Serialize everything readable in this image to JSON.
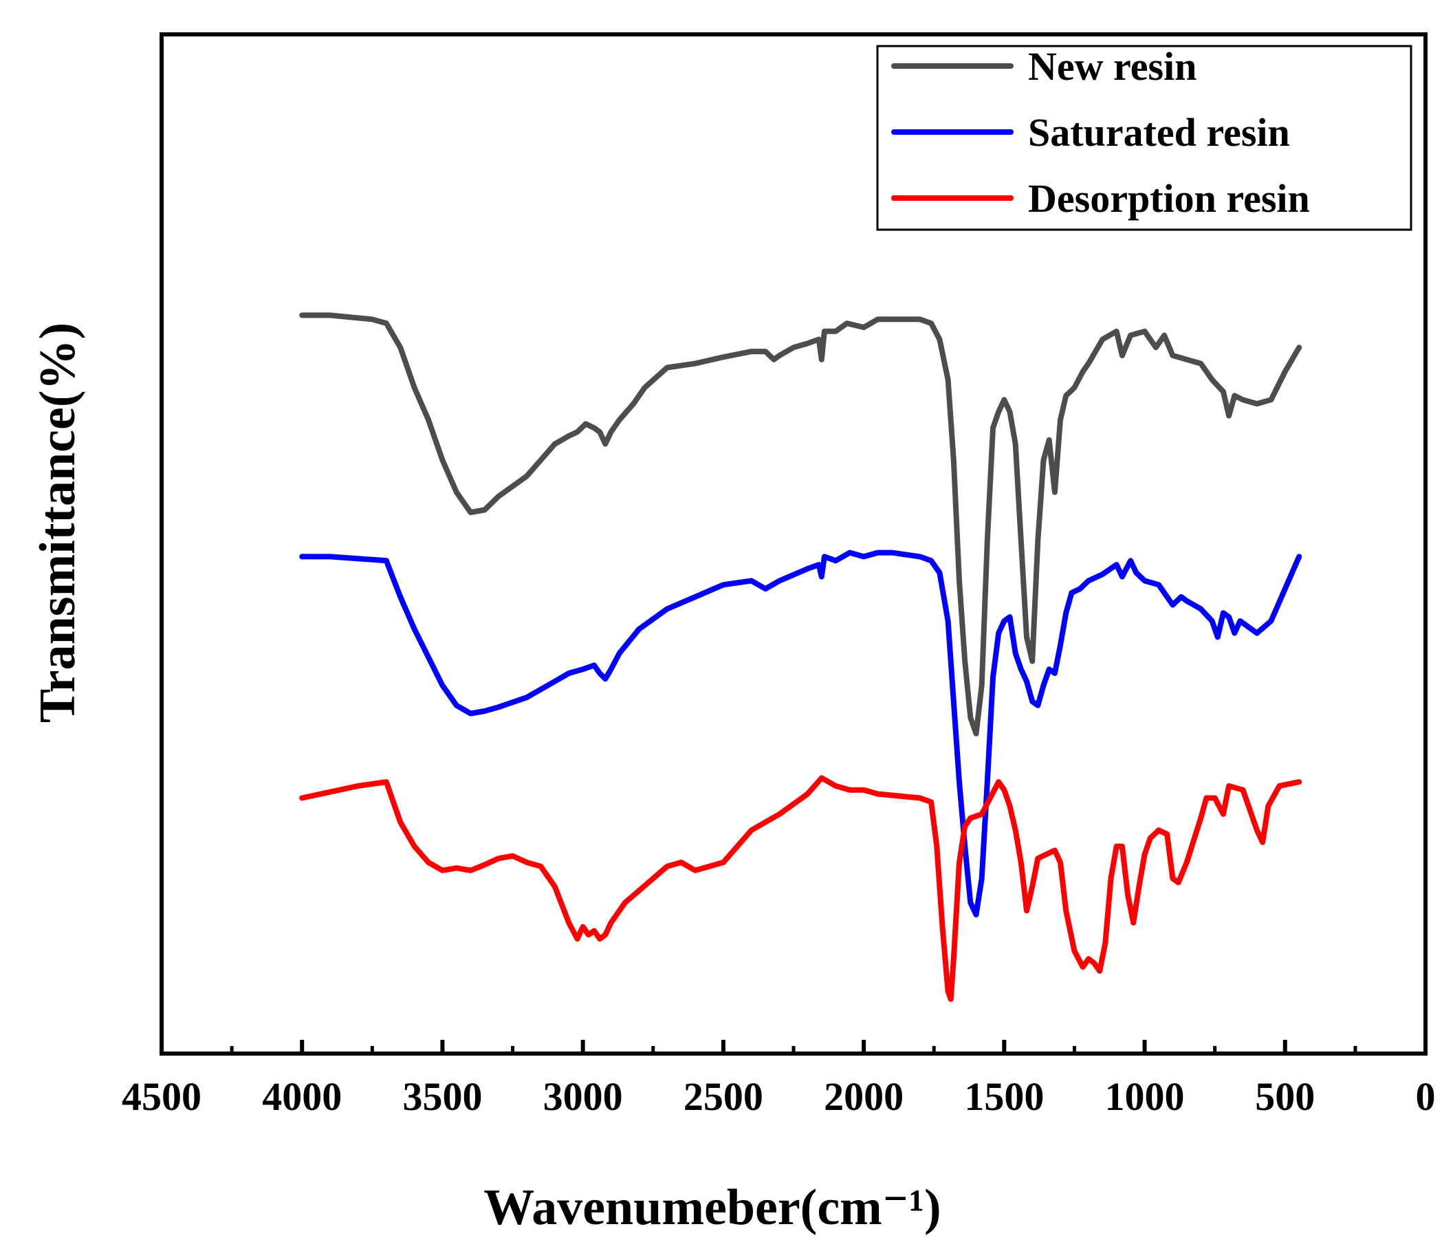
{
  "chart_data": {
    "type": "line",
    "title": "",
    "xlabel": "Wavenumeber(cm⁻¹)",
    "ylabel": "Transmittance(%)",
    "xlim": [
      4500,
      0
    ],
    "x_reversed": true,
    "y_ticks_shown": false,
    "grid": false,
    "legend_position": "top-right",
    "x_tick_labels": [
      "4500",
      "4000",
      "3500",
      "3000",
      "2500",
      "2000",
      "1500",
      "1000",
      "500",
      "0"
    ],
    "series": [
      {
        "name": "New resin",
        "color": "#4d4d4d",
        "points": [
          [
            4000,
            88
          ],
          [
            3900,
            88
          ],
          [
            3750,
            87.5
          ],
          [
            3700,
            87
          ],
          [
            3650,
            84
          ],
          [
            3600,
            79
          ],
          [
            3550,
            75
          ],
          [
            3500,
            70
          ],
          [
            3450,
            66
          ],
          [
            3400,
            63.5
          ],
          [
            3350,
            63.8
          ],
          [
            3300,
            65.5
          ],
          [
            3200,
            68
          ],
          [
            3100,
            72
          ],
          [
            3050,
            73
          ],
          [
            3020,
            73.5
          ],
          [
            2990,
            74.5
          ],
          [
            2960,
            74
          ],
          [
            2940,
            73.5
          ],
          [
            2920,
            72
          ],
          [
            2900,
            73.5
          ],
          [
            2870,
            75
          ],
          [
            2820,
            77
          ],
          [
            2780,
            79
          ],
          [
            2700,
            81.5
          ],
          [
            2600,
            82
          ],
          [
            2500,
            82.8
          ],
          [
            2400,
            83.5
          ],
          [
            2350,
            83.5
          ],
          [
            2320,
            82.5
          ],
          [
            2300,
            83
          ],
          [
            2250,
            84
          ],
          [
            2200,
            84.5
          ],
          [
            2160,
            85
          ],
          [
            2150,
            82.5
          ],
          [
            2140,
            86
          ],
          [
            2100,
            86
          ],
          [
            2060,
            87
          ],
          [
            2000,
            86.5
          ],
          [
            1950,
            87.5
          ],
          [
            1900,
            87.5
          ],
          [
            1800,
            87.5
          ],
          [
            1760,
            87
          ],
          [
            1730,
            85
          ],
          [
            1700,
            80
          ],
          [
            1680,
            70
          ],
          [
            1660,
            55
          ],
          [
            1640,
            45
          ],
          [
            1620,
            38
          ],
          [
            1600,
            36
          ],
          [
            1580,
            42
          ],
          [
            1560,
            60
          ],
          [
            1540,
            74
          ],
          [
            1520,
            76
          ],
          [
            1500,
            77.5
          ],
          [
            1480,
            76
          ],
          [
            1460,
            72
          ],
          [
            1440,
            60
          ],
          [
            1420,
            48
          ],
          [
            1400,
            45
          ],
          [
            1380,
            60
          ],
          [
            1360,
            70
          ],
          [
            1340,
            72.5
          ],
          [
            1320,
            66
          ],
          [
            1300,
            75
          ],
          [
            1280,
            78
          ],
          [
            1250,
            79
          ],
          [
            1220,
            81
          ],
          [
            1200,
            82
          ],
          [
            1150,
            85
          ],
          [
            1100,
            86
          ],
          [
            1080,
            83
          ],
          [
            1050,
            85.5
          ],
          [
            1000,
            86
          ],
          [
            960,
            84
          ],
          [
            930,
            85.5
          ],
          [
            900,
            83
          ],
          [
            850,
            82.5
          ],
          [
            800,
            82
          ],
          [
            760,
            80
          ],
          [
            720,
            78.5
          ],
          [
            700,
            75.5
          ],
          [
            680,
            78
          ],
          [
            650,
            77.5
          ],
          [
            600,
            77
          ],
          [
            550,
            77.5
          ],
          [
            500,
            81
          ],
          [
            450,
            84
          ]
        ]
      },
      {
        "name": "Saturated resin",
        "color": "#0000ff",
        "points": [
          [
            4000,
            58
          ],
          [
            3900,
            58
          ],
          [
            3700,
            57.5
          ],
          [
            3650,
            53
          ],
          [
            3600,
            49
          ],
          [
            3550,
            45.5
          ],
          [
            3500,
            42
          ],
          [
            3450,
            39.5
          ],
          [
            3400,
            38.5
          ],
          [
            3350,
            38.8
          ],
          [
            3300,
            39.3
          ],
          [
            3200,
            40.5
          ],
          [
            3100,
            42.5
          ],
          [
            3050,
            43.5
          ],
          [
            3000,
            44
          ],
          [
            2960,
            44.5
          ],
          [
            2940,
            43.5
          ],
          [
            2920,
            42.8
          ],
          [
            2900,
            44
          ],
          [
            2870,
            46
          ],
          [
            2800,
            49
          ],
          [
            2700,
            51.5
          ],
          [
            2600,
            53
          ],
          [
            2500,
            54.5
          ],
          [
            2400,
            55
          ],
          [
            2350,
            54
          ],
          [
            2300,
            55
          ],
          [
            2200,
            56.5
          ],
          [
            2160,
            57
          ],
          [
            2150,
            55.5
          ],
          [
            2140,
            58
          ],
          [
            2100,
            57.5
          ],
          [
            2050,
            58.5
          ],
          [
            2000,
            58
          ],
          [
            1950,
            58.5
          ],
          [
            1900,
            58.5
          ],
          [
            1800,
            58
          ],
          [
            1760,
            57.5
          ],
          [
            1730,
            56
          ],
          [
            1700,
            50
          ],
          [
            1680,
            40
          ],
          [
            1660,
            30
          ],
          [
            1640,
            22
          ],
          [
            1620,
            15
          ],
          [
            1600,
            13.5
          ],
          [
            1580,
            18
          ],
          [
            1560,
            30
          ],
          [
            1540,
            43
          ],
          [
            1520,
            48.5
          ],
          [
            1500,
            50
          ],
          [
            1480,
            50.5
          ],
          [
            1460,
            46
          ],
          [
            1440,
            44
          ],
          [
            1420,
            42.5
          ],
          [
            1400,
            40
          ],
          [
            1380,
            39.5
          ],
          [
            1360,
            42
          ],
          [
            1340,
            44
          ],
          [
            1320,
            43.5
          ],
          [
            1300,
            47
          ],
          [
            1280,
            51
          ],
          [
            1260,
            53.5
          ],
          [
            1230,
            54
          ],
          [
            1200,
            55
          ],
          [
            1150,
            55.8
          ],
          [
            1100,
            57
          ],
          [
            1080,
            55.5
          ],
          [
            1050,
            57.5
          ],
          [
            1030,
            56
          ],
          [
            1000,
            55
          ],
          [
            950,
            54.5
          ],
          [
            900,
            52
          ],
          [
            870,
            53
          ],
          [
            850,
            52.5
          ],
          [
            800,
            51.5
          ],
          [
            760,
            50
          ],
          [
            740,
            48
          ],
          [
            720,
            51
          ],
          [
            700,
            50.5
          ],
          [
            680,
            48.5
          ],
          [
            660,
            50
          ],
          [
            640,
            49.5
          ],
          [
            600,
            48.5
          ],
          [
            550,
            50
          ],
          [
            500,
            54
          ],
          [
            450,
            58
          ]
        ]
      },
      {
        "name": "Desorption resin",
        "color": "#ff0000",
        "points": [
          [
            4000,
            28
          ],
          [
            3800,
            29.5
          ],
          [
            3700,
            30
          ],
          [
            3650,
            25
          ],
          [
            3600,
            22
          ],
          [
            3550,
            20
          ],
          [
            3500,
            19
          ],
          [
            3450,
            19.3
          ],
          [
            3400,
            19
          ],
          [
            3350,
            19.7
          ],
          [
            3300,
            20.5
          ],
          [
            3250,
            20.8
          ],
          [
            3200,
            20
          ],
          [
            3150,
            19.5
          ],
          [
            3100,
            17
          ],
          [
            3050,
            12.5
          ],
          [
            3020,
            10.5
          ],
          [
            3000,
            12
          ],
          [
            2980,
            11
          ],
          [
            2960,
            11.5
          ],
          [
            2940,
            10.5
          ],
          [
            2920,
            11
          ],
          [
            2900,
            12.5
          ],
          [
            2850,
            15
          ],
          [
            2800,
            16.5
          ],
          [
            2750,
            18
          ],
          [
            2700,
            19.5
          ],
          [
            2650,
            20
          ],
          [
            2600,
            19
          ],
          [
            2500,
            20
          ],
          [
            2450,
            22
          ],
          [
            2400,
            24
          ],
          [
            2300,
            26
          ],
          [
            2200,
            28.5
          ],
          [
            2150,
            30.5
          ],
          [
            2100,
            29.5
          ],
          [
            2050,
            29
          ],
          [
            2000,
            29
          ],
          [
            1950,
            28.5
          ],
          [
            1800,
            28
          ],
          [
            1760,
            27.5
          ],
          [
            1740,
            22
          ],
          [
            1720,
            12
          ],
          [
            1700,
            4
          ],
          [
            1690,
            3
          ],
          [
            1680,
            8
          ],
          [
            1660,
            20
          ],
          [
            1640,
            24.5
          ],
          [
            1620,
            25.5
          ],
          [
            1580,
            26
          ],
          [
            1550,
            28
          ],
          [
            1520,
            30
          ],
          [
            1500,
            29
          ],
          [
            1480,
            27
          ],
          [
            1460,
            24
          ],
          [
            1440,
            20
          ],
          [
            1420,
            14
          ],
          [
            1400,
            17
          ],
          [
            1380,
            20.5
          ],
          [
            1350,
            21
          ],
          [
            1320,
            21.5
          ],
          [
            1300,
            20
          ],
          [
            1280,
            14
          ],
          [
            1250,
            9
          ],
          [
            1220,
            7
          ],
          [
            1200,
            8
          ],
          [
            1180,
            7.5
          ],
          [
            1160,
            6.5
          ],
          [
            1140,
            10
          ],
          [
            1120,
            18
          ],
          [
            1100,
            22
          ],
          [
            1080,
            22
          ],
          [
            1060,
            16
          ],
          [
            1040,
            12.5
          ],
          [
            1020,
            17
          ],
          [
            1000,
            21
          ],
          [
            980,
            23
          ],
          [
            950,
            24
          ],
          [
            920,
            23.5
          ],
          [
            900,
            18
          ],
          [
            880,
            17.5
          ],
          [
            850,
            20
          ],
          [
            800,
            25.5
          ],
          [
            780,
            28
          ],
          [
            750,
            28
          ],
          [
            720,
            26
          ],
          [
            700,
            29.5
          ],
          [
            650,
            29
          ],
          [
            600,
            24
          ],
          [
            580,
            22.5
          ],
          [
            560,
            27
          ],
          [
            520,
            29.5
          ],
          [
            450,
            30
          ]
        ]
      }
    ],
    "annotations": []
  }
}
